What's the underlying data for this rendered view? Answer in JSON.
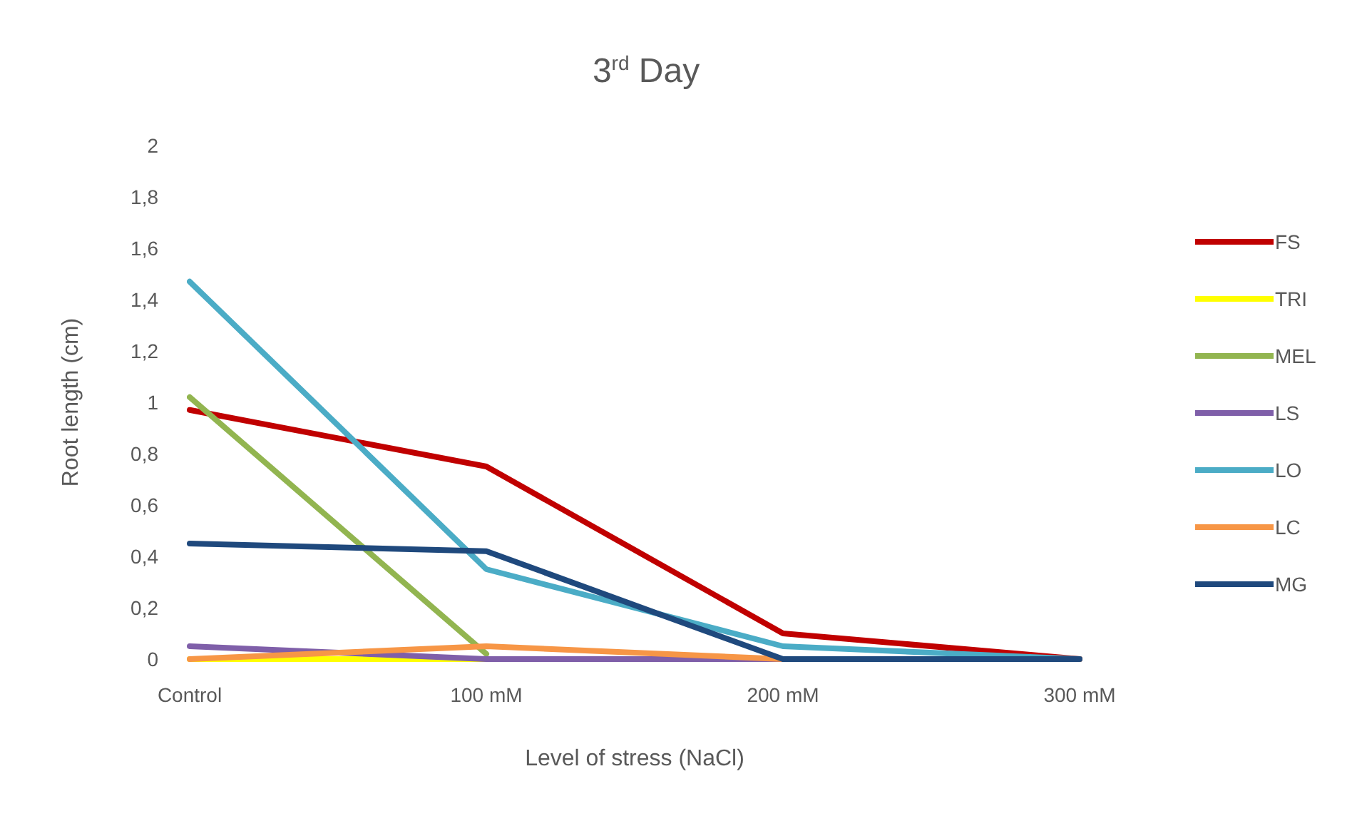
{
  "chart_data": {
    "type": "line",
    "title": "3$^{rd}$ Day",
    "xlabel": "Level of stress (NaCl)",
    "ylabel": "Root length (cm)",
    "categories": [
      "Control",
      "100 mM",
      "200 mM",
      "300 mM"
    ],
    "series": [
      {
        "name": "FS",
        "color": "#c00000",
        "values": [
          0.97,
          0.75,
          0.1,
          0
        ]
      },
      {
        "name": "TRI",
        "color": "#ffff00",
        "values": [
          0,
          0,
          null,
          null
        ]
      },
      {
        "name": "MEL",
        "color": "#92b550",
        "values": [
          1.02,
          0.02,
          null,
          null
        ]
      },
      {
        "name": "LS",
        "color": "#7f5fa9",
        "values": [
          0.05,
          0,
          0,
          0
        ]
      },
      {
        "name": "LO",
        "color": "#4bacc6",
        "values": [
          1.47,
          0.35,
          0.05,
          0
        ]
      },
      {
        "name": "LC",
        "color": "#f79646",
        "values": [
          0,
          0.05,
          0,
          0
        ]
      },
      {
        "name": "MG",
        "color": "#1f497d",
        "values": [
          0.45,
          0.42,
          0,
          0
        ]
      }
    ],
    "ylim": [
      0,
      2
    ],
    "yticks": [
      0,
      {
        "value": 0.2,
        "label": "0,2"
      },
      {
        "value": 0.4,
        "label": "0,4"
      },
      {
        "value": 0.6,
        "label": "0,6"
      },
      {
        "value": 0.8,
        "label": "0,8"
      },
      1,
      {
        "value": 1.2,
        "label": "1,2"
      },
      {
        "value": 1.4,
        "label": "1,4"
      },
      {
        "value": 1.6,
        "label": "1,6"
      },
      {
        "value": 1.8,
        "label": "1,8"
      },
      2
    ],
    "grid": false,
    "legend": "right",
    "marker": "none",
    "line_style": "solid"
  }
}
